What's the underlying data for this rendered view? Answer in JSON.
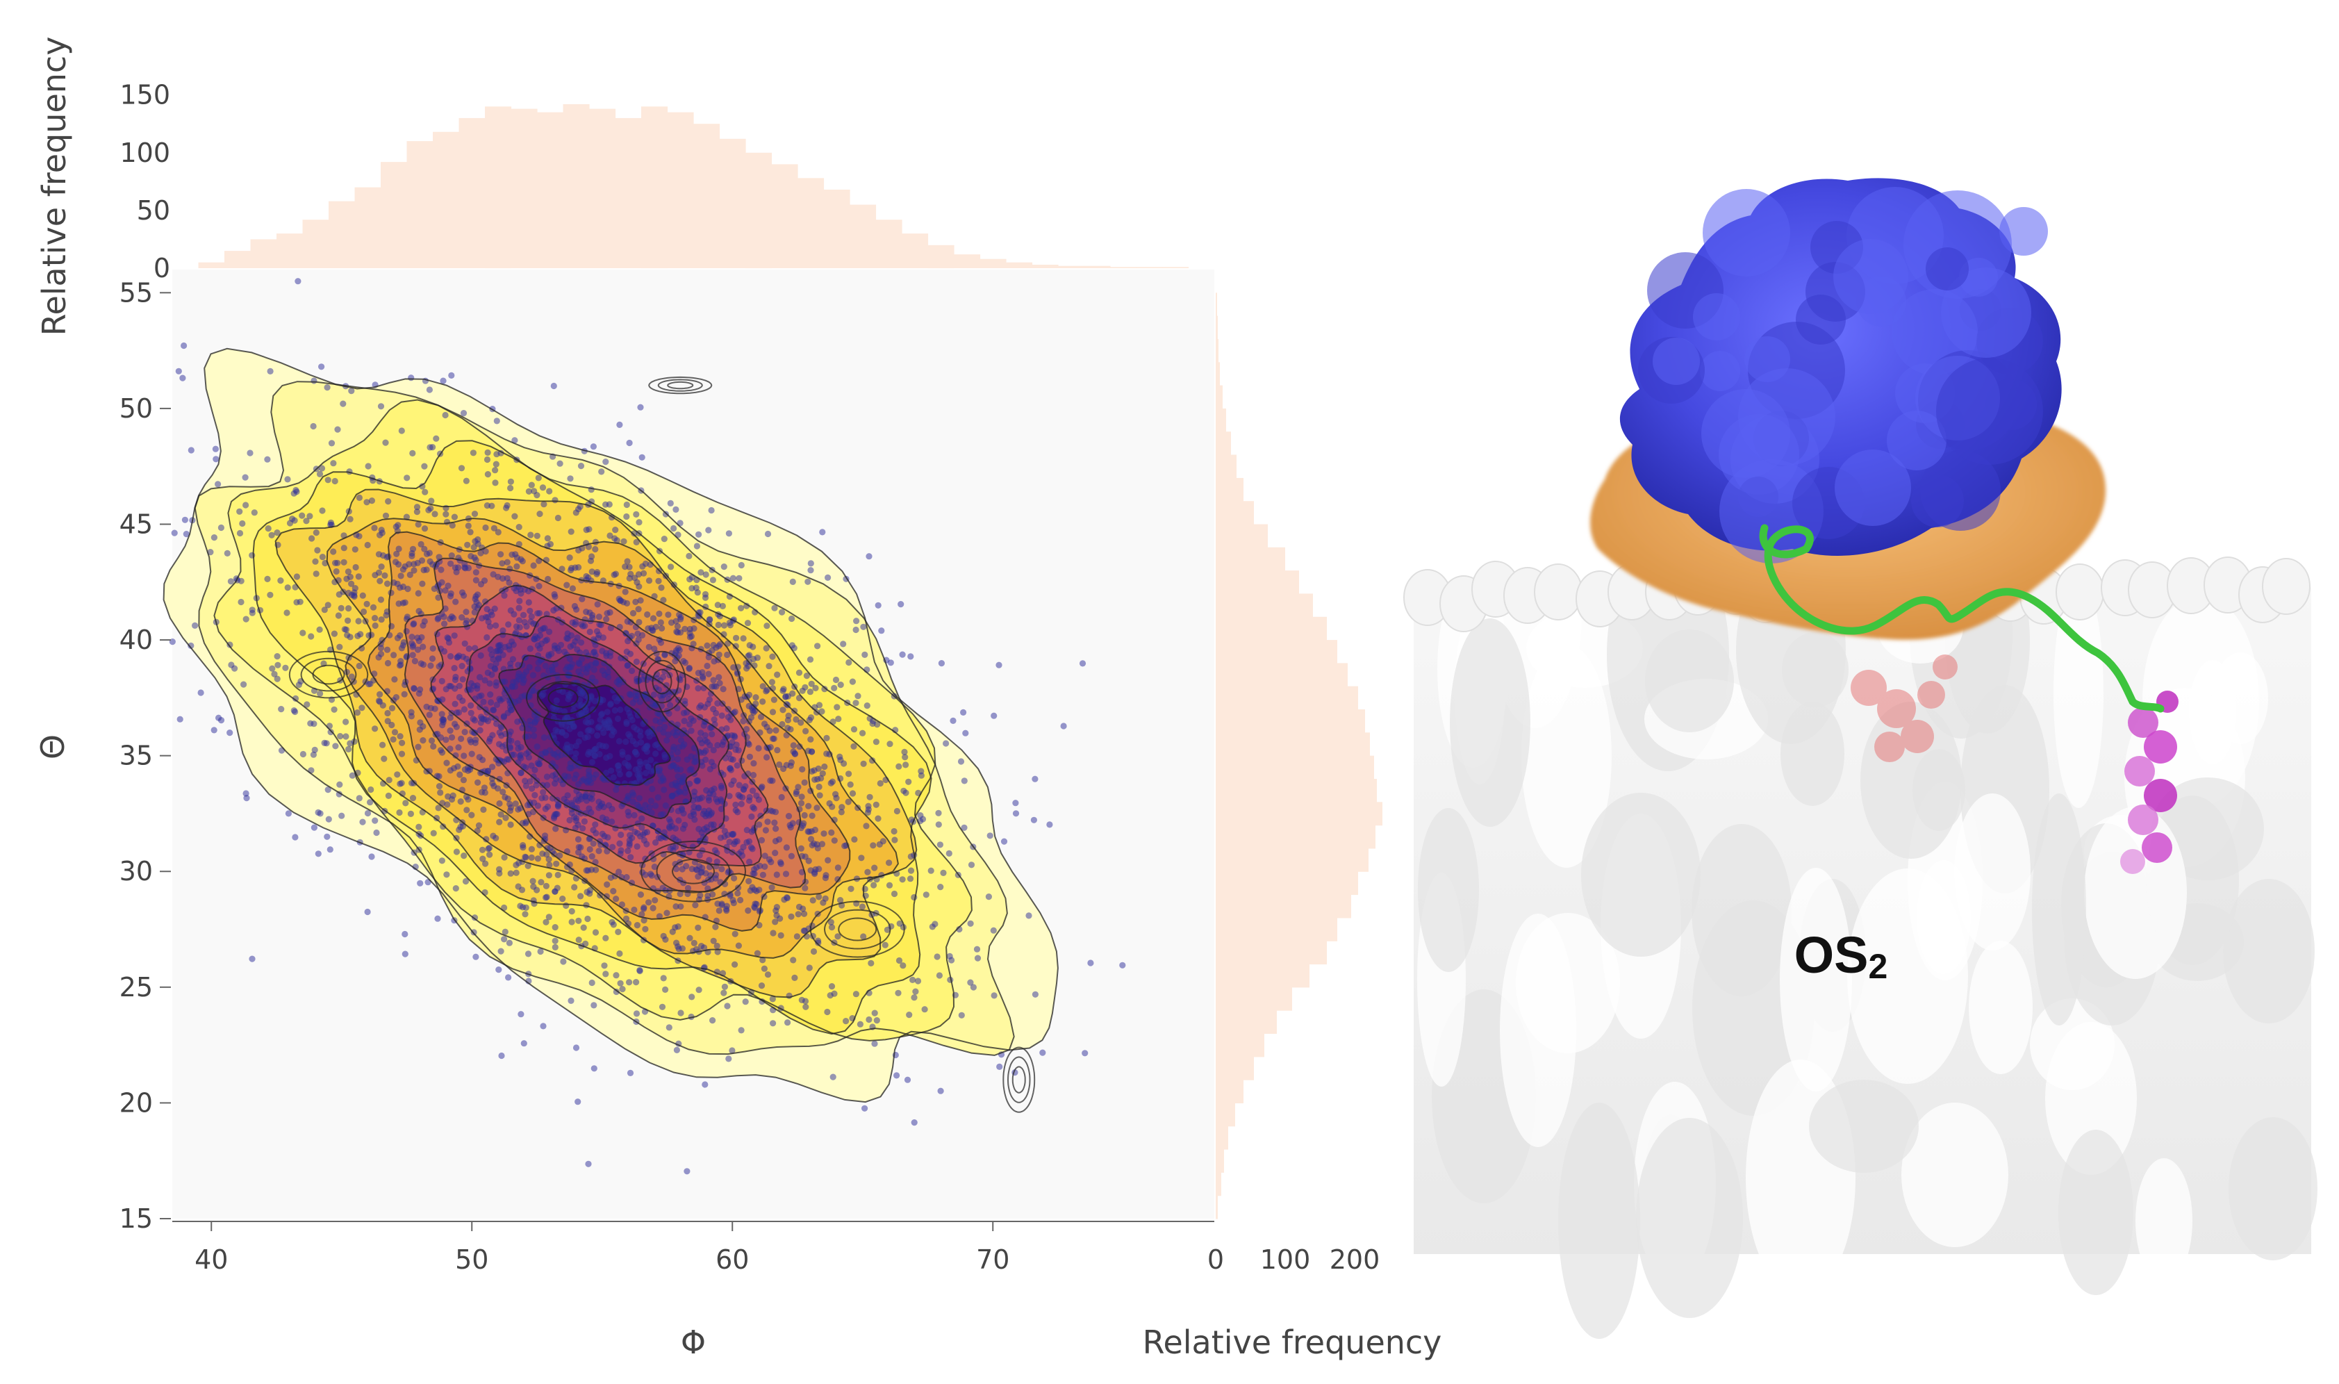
{
  "chart_data": {
    "type": "scatter",
    "title": "",
    "xlabel": "Φ",
    "ylabel": "Θ",
    "xlim": [
      38.5,
      78.5
    ],
    "ylim": [
      15,
      56
    ],
    "x_ticks": [
      40,
      50,
      60,
      70
    ],
    "y_ticks": [
      15,
      20,
      25,
      30,
      35,
      40,
      45,
      50,
      55
    ],
    "scatter": {
      "description_count": 3000,
      "mean": [
        55.0,
        36.0
      ],
      "point_color": "#2e2e9a"
    },
    "density_contours": {
      "levels": 12,
      "colormap": [
        "#fffcc8",
        "#fff35a",
        "#f0b030",
        "#c04a6a",
        "#3c0a7a"
      ],
      "peaks": [
        {
          "x": 53.5,
          "y": 37.5
        },
        {
          "x": 58.5,
          "y": 30.0
        },
        {
          "x": 49.5,
          "y": 33.0
        }
      ]
    },
    "top_histogram": {
      "ylabel": "Relative frequency",
      "y_ticks": [
        0,
        50,
        100,
        150
      ],
      "bin_centers": [
        40,
        41,
        42,
        43,
        44,
        45,
        46,
        47,
        48,
        49,
        50,
        51,
        52,
        53,
        54,
        55,
        56,
        57,
        58,
        59,
        60,
        61,
        62,
        63,
        64,
        65,
        66,
        67,
        68,
        69,
        70,
        71,
        72,
        73,
        74,
        75,
        76,
        77
      ],
      "counts": [
        5,
        15,
        25,
        30,
        42,
        58,
        70,
        92,
        110,
        118,
        130,
        140,
        138,
        135,
        142,
        138,
        130,
        140,
        135,
        125,
        112,
        100,
        90,
        78,
        68,
        55,
        42,
        30,
        20,
        12,
        8,
        5,
        3,
        2,
        2,
        1,
        1,
        1
      ],
      "color": "#fde9dc"
    },
    "right_histogram": {
      "xlabel": "Relative frequency",
      "x_ticks_labels": [
        "0",
        "100",
        "200"
      ],
      "x_ticks": [
        0,
        100,
        200
      ],
      "bin_centers": [
        15.5,
        16.5,
        17.5,
        18.5,
        19.5,
        20.5,
        21.5,
        22.5,
        23.5,
        24.5,
        25.5,
        26.5,
        27.5,
        28.5,
        29.5,
        30.5,
        31.5,
        32.5,
        33.5,
        34.5,
        35.5,
        36.5,
        37.5,
        38.5,
        39.5,
        40.5,
        41.5,
        42.5,
        43.5,
        44.5,
        45.5,
        46.5,
        47.5,
        48.5,
        49.5,
        50.5,
        51.5,
        52.5,
        53.5,
        54.5
      ],
      "counts": [
        3,
        8,
        12,
        18,
        28,
        40,
        55,
        70,
        88,
        110,
        135,
        160,
        175,
        195,
        205,
        220,
        230,
        240,
        232,
        228,
        222,
        215,
        205,
        190,
        175,
        160,
        140,
        120,
        100,
        75,
        55,
        40,
        30,
        22,
        15,
        10,
        6,
        4,
        3,
        2
      ],
      "color": "#fde9dc"
    }
  },
  "structure_label": {
    "main": "OS",
    "subscript": "2"
  },
  "colors": {
    "membrane": "#f2f2f2",
    "protein_blue": "#4a4ee6",
    "protein_orange": "#eeaa5a",
    "linker_green": "#3ec43e",
    "ligand_magenta": "#cc44cc",
    "ligand_red": "#e88888"
  }
}
